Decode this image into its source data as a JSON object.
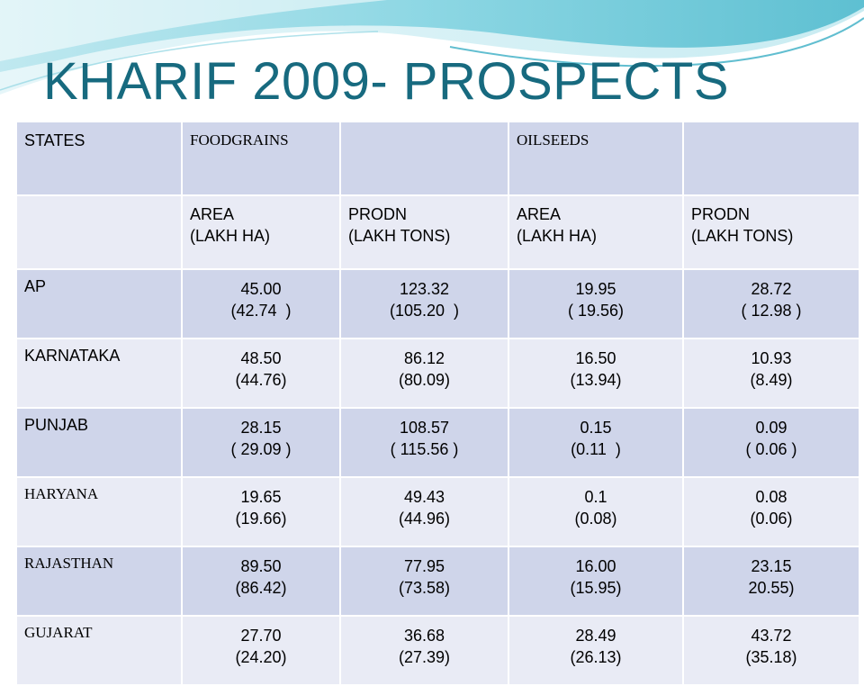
{
  "slide": {
    "title": "KHARIF 2009- PROSPECTS"
  },
  "table": {
    "header1": [
      "STATES",
      "FOODGRAINS",
      "",
      "OILSEEDS",
      ""
    ],
    "header2": [
      "",
      [
        "AREA",
        "(LAKH HA)"
      ],
      [
        "PRODN",
        "(LAKH TONS)"
      ],
      [
        "AREA",
        "(LAKH HA)"
      ],
      [
        "PRODN",
        "(LAKH TONS)"
      ]
    ],
    "rows": [
      {
        "state": "AP",
        "fg_area": [
          "45.00",
          "(42.74  )"
        ],
        "fg_prodn": [
          "123.32",
          "(105.20  )"
        ],
        "os_area": [
          "19.95",
          "( 19.56)"
        ],
        "os_prodn": [
          "28.72",
          "( 12.98 )"
        ]
      },
      {
        "state": "KARNATAKA",
        "fg_area": [
          "48.50",
          "(44.76)"
        ],
        "fg_prodn": [
          "86.12",
          "(80.09)"
        ],
        "os_area": [
          "16.50",
          "(13.94)"
        ],
        "os_prodn": [
          "10.93",
          "(8.49)"
        ]
      },
      {
        "state": "PUNJAB",
        "fg_area": [
          "28.15",
          "( 29.09 )"
        ],
        "fg_prodn": [
          "108.57",
          "( 115.56 )"
        ],
        "os_area": [
          "0.15",
          "(0.11  )"
        ],
        "os_prodn": [
          "0.09",
          "( 0.06 )"
        ]
      },
      {
        "state": "HARYANA",
        "fg_area": [
          "19.65",
          "(19.66)"
        ],
        "fg_prodn": [
          "49.43",
          "(44.96)"
        ],
        "os_area": [
          "0.1",
          "(0.08)"
        ],
        "os_prodn": [
          "0.08",
          "(0.06)"
        ]
      },
      {
        "state": "RAJASTHAN",
        "fg_area": [
          "89.50",
          "(86.42)"
        ],
        "fg_prodn": [
          "77.95",
          "(73.58)"
        ],
        "os_area": [
          "16.00",
          "(15.95)"
        ],
        "os_prodn": [
          "23.15",
          "20.55)"
        ]
      },
      {
        "state": "GUJARAT",
        "fg_area": [
          "27.70",
          "(24.20)"
        ],
        "fg_prodn": [
          "36.68",
          "(27.39)"
        ],
        "os_area": [
          "28.49",
          "(26.13)"
        ],
        "os_prodn": [
          "43.72",
          "(35.18)"
        ]
      }
    ]
  },
  "colors": {
    "title": "#176a7f",
    "row_dark": "#cfd5ea",
    "row_light": "#e9ebf5",
    "wave_teal": "#5fc8d8"
  }
}
